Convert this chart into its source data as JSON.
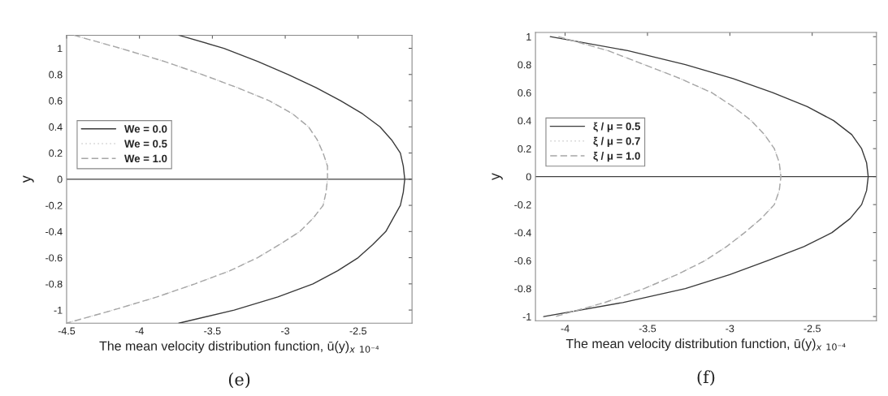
{
  "chart_data": [
    {
      "type": "line",
      "xlabel": "The mean velocity distribution function, ū(y)$_{x}$ $_{10⁻⁴}$",
      "ylabel": "y",
      "annotations": [
        "(e)"
      ],
      "xlim": [
        -4.5,
        -2.13
      ],
      "ylim": [
        -1.1,
        1.1
      ],
      "xticks": [
        -4.5,
        -4,
        -3.5,
        -3,
        -2.5
      ],
      "yticks": [
        -1,
        -0.8,
        -0.6,
        -0.4,
        -0.2,
        0,
        0.2,
        0.4,
        0.6,
        0.8,
        1
      ],
      "legend": "left",
      "ref_lines": [
        {
          "axis": "y",
          "value": 0,
          "color": "#404040"
        }
      ],
      "series": [
        {
          "name": "We = 0.0",
          "color": "#3a3a3a",
          "line_style": "solid",
          "x": [
            -3.73,
            -3.42,
            -3.19,
            -2.98,
            -2.79,
            -2.62,
            -2.47,
            -2.35,
            -2.27,
            -2.21,
            -2.19,
            -2.18,
            -2.19,
            -2.21,
            -2.26,
            -2.31,
            -2.4,
            -2.5,
            -2.64,
            -2.81,
            -3.05,
            -3.35,
            -3.73
          ],
          "values": [
            1.1,
            1.0,
            0.9,
            0.8,
            0.7,
            0.6,
            0.5,
            0.4,
            0.3,
            0.2,
            0.1,
            0,
            -0.1,
            -0.2,
            -0.3,
            -0.4,
            -0.5,
            -0.6,
            -0.7,
            -0.8,
            -0.9,
            -1.0,
            -1.1
          ]
        },
        {
          "name": "We = 0.5",
          "color": "#d4d4d4",
          "line_style": "dotted",
          "x": [
            -4.45,
            -4.13,
            -3.83,
            -3.57,
            -3.33,
            -3.11,
            -2.95,
            -2.84,
            -2.78,
            -2.74,
            -2.71,
            -2.71,
            -2.72,
            -2.74,
            -2.81,
            -2.9,
            -3.04,
            -3.19,
            -3.38,
            -3.62,
            -3.88,
            -4.18,
            -4.5
          ],
          "values": [
            1.1,
            1.0,
            0.9,
            0.8,
            0.7,
            0.6,
            0.5,
            0.4,
            0.3,
            0.2,
            0.1,
            0,
            -0.1,
            -0.2,
            -0.3,
            -0.4,
            -0.5,
            -0.6,
            -0.7,
            -0.8,
            -0.9,
            -1.0,
            -1.1
          ]
        },
        {
          "name": "We = 1.0",
          "color": "#a6a6a6",
          "line_style": "dashed",
          "x": [
            -4.45,
            -4.13,
            -3.83,
            -3.57,
            -3.33,
            -3.11,
            -2.95,
            -2.84,
            -2.78,
            -2.74,
            -2.71,
            -2.71,
            -2.72,
            -2.74,
            -2.81,
            -2.9,
            -3.04,
            -3.19,
            -3.38,
            -3.62,
            -3.88,
            -4.18,
            -4.5
          ],
          "values": [
            1.1,
            1.0,
            0.9,
            0.8,
            0.7,
            0.6,
            0.5,
            0.4,
            0.3,
            0.2,
            0.1,
            0,
            -0.1,
            -0.2,
            -0.3,
            -0.4,
            -0.5,
            -0.6,
            -0.7,
            -0.8,
            -0.9,
            -1.0,
            -1.1
          ]
        }
      ]
    },
    {
      "type": "line",
      "xlabel": "The mean velocity distribution function, ū(y)$_{x}$ $_{10⁻⁴}$",
      "ylabel": "y",
      "annotations": [
        "(f)"
      ],
      "xlim": [
        -4.18,
        -2.11
      ],
      "ylim": [
        -1.03,
        1.03
      ],
      "xticks": [
        -4,
        -3.5,
        -3,
        -2.5
      ],
      "yticks": [
        -1,
        -0.8,
        -0.6,
        -0.4,
        -0.2,
        0,
        0.2,
        0.4,
        0.6,
        0.8,
        1
      ],
      "legend": "left",
      "ref_lines": [
        {
          "axis": "y",
          "value": 0,
          "color": "#404040"
        }
      ],
      "series": [
        {
          "name": "ξ / μ = 0.5",
          "color": "#3a3a3a",
          "line_style": "solid",
          "x": [
            -4.09,
            -3.62,
            -3.27,
            -2.98,
            -2.74,
            -2.53,
            -2.37,
            -2.26,
            -2.2,
            -2.17,
            -2.16,
            -2.17,
            -2.2,
            -2.27,
            -2.38,
            -2.55,
            -2.77,
            -3.0,
            -3.27,
            -3.65,
            -4.13
          ],
          "values": [
            1.0,
            0.9,
            0.8,
            0.7,
            0.6,
            0.5,
            0.4,
            0.3,
            0.2,
            0.1,
            0,
            -0.1,
            -0.2,
            -0.3,
            -0.4,
            -0.5,
            -0.6,
            -0.7,
            -0.8,
            -0.9,
            -1.0
          ]
        },
        {
          "name": "ξ / μ = 0.7",
          "color": "#d4d4d4",
          "line_style": "dotted",
          "x": [
            -4.04,
            -3.74,
            -3.52,
            -3.3,
            -3.11,
            -2.98,
            -2.87,
            -2.79,
            -2.73,
            -2.7,
            -2.69,
            -2.7,
            -2.73,
            -2.81,
            -2.91,
            -3.02,
            -3.15,
            -3.32,
            -3.52,
            -3.76,
            -4.06
          ],
          "values": [
            1.0,
            0.9,
            0.8,
            0.7,
            0.6,
            0.5,
            0.4,
            0.3,
            0.2,
            0.1,
            0,
            -0.1,
            -0.2,
            -0.3,
            -0.4,
            -0.5,
            -0.6,
            -0.7,
            -0.8,
            -0.9,
            -1.0
          ]
        },
        {
          "name": "ξ / μ = 1.0",
          "color": "#a6a6a6",
          "line_style": "dashed",
          "x": [
            -4.04,
            -3.74,
            -3.52,
            -3.3,
            -3.11,
            -2.98,
            -2.87,
            -2.79,
            -2.73,
            -2.7,
            -2.69,
            -2.7,
            -2.73,
            -2.81,
            -2.91,
            -3.02,
            -3.15,
            -3.32,
            -3.52,
            -3.76,
            -4.06
          ],
          "values": [
            1.0,
            0.9,
            0.8,
            0.7,
            0.6,
            0.5,
            0.4,
            0.3,
            0.2,
            0.1,
            0,
            -0.1,
            -0.2,
            -0.3,
            -0.4,
            -0.5,
            -0.6,
            -0.7,
            -0.8,
            -0.9,
            -1.0
          ]
        }
      ]
    }
  ]
}
